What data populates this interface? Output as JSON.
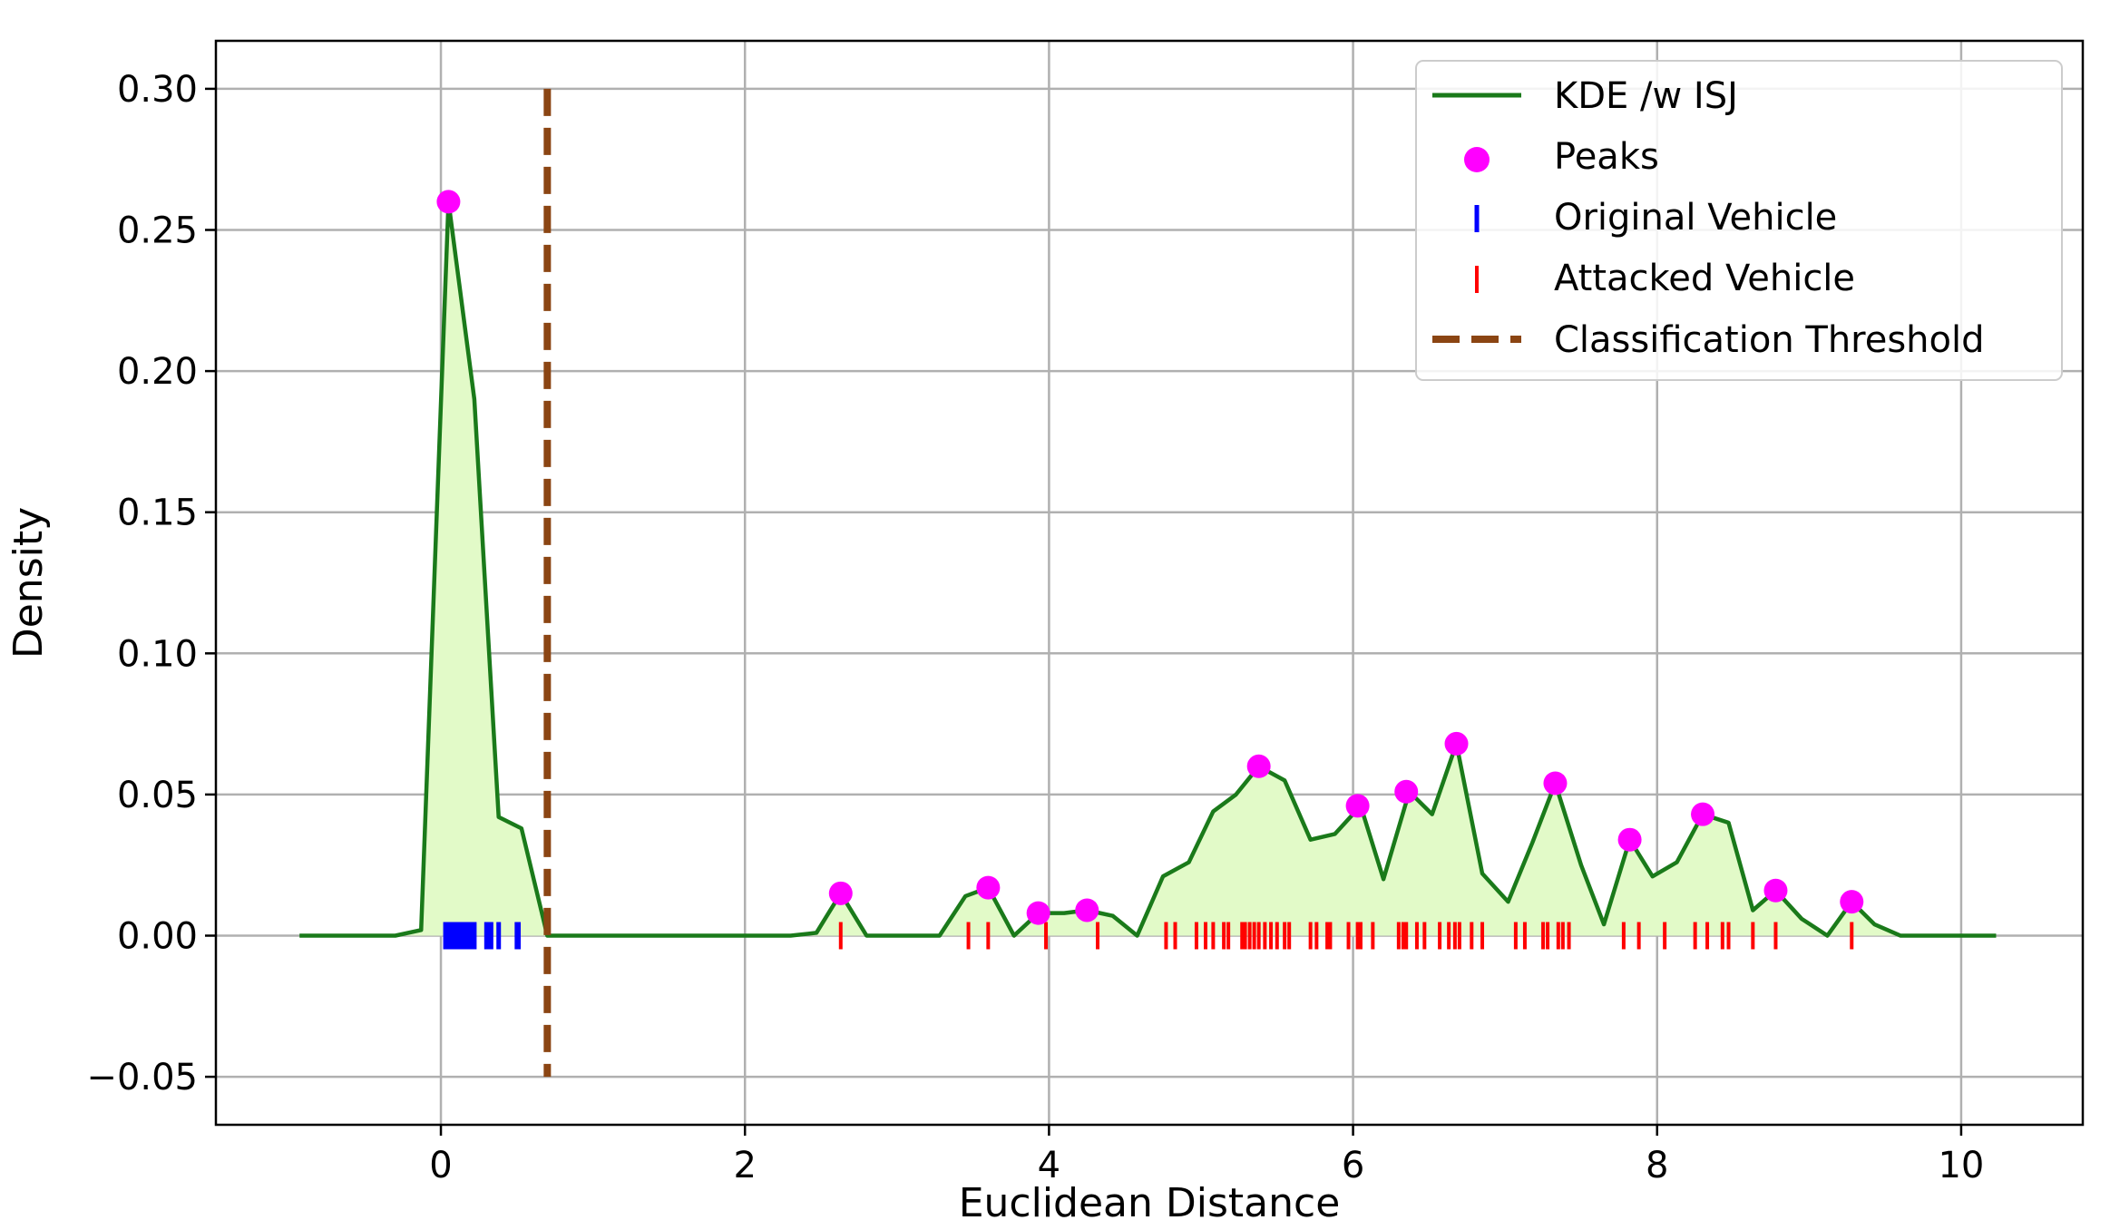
{
  "chart_data": {
    "type": "line",
    "title": "",
    "xlabel": "Euclidean Distance",
    "ylabel": "Density",
    "xlim": [
      -1.48,
      10.8
    ],
    "ylim": [
      -0.067,
      0.317
    ],
    "xticks": [
      0,
      2,
      4,
      6,
      8,
      10
    ],
    "xtick_labels": [
      "0",
      "2",
      "4",
      "6",
      "8",
      "10"
    ],
    "yticks": [
      -0.05,
      0.0,
      0.05,
      0.1,
      0.15,
      0.2,
      0.25,
      0.3
    ],
    "ytick_labels": [
      "−0.05",
      "0.00",
      "0.05",
      "0.10",
      "0.15",
      "0.20",
      "0.25",
      "0.30"
    ],
    "grid": true,
    "legend_position": "top-right",
    "colors": {
      "kde": "#1a7a1a",
      "fill": "#e2fac8",
      "peaks": "#ff00ff",
      "original": "#0000ff",
      "attacked": "#ff0000",
      "threshold": "#8b4513",
      "grid": "#b0b0b0"
    },
    "series": [
      {
        "name": "KDE /w ISJ",
        "x": [
          -0.93,
          -0.3,
          -0.13,
          0.05,
          0.22,
          0.38,
          0.53,
          0.7,
          2.3,
          2.47,
          2.63,
          2.8,
          3.28,
          3.45,
          3.6,
          3.77,
          3.93,
          4.1,
          4.25,
          4.42,
          4.58,
          4.75,
          4.92,
          5.08,
          5.23,
          5.38,
          5.55,
          5.72,
          5.88,
          6.05,
          6.2,
          6.37,
          6.52,
          6.68,
          6.85,
          7.02,
          7.18,
          7.33,
          7.5,
          7.65,
          7.82,
          7.97,
          8.13,
          8.3,
          8.47,
          8.63,
          8.78,
          8.95,
          9.12,
          9.28,
          9.43,
          9.6,
          10.23
        ],
        "y": [
          0.0,
          0.0,
          0.002,
          0.26,
          0.19,
          0.042,
          0.038,
          0.0,
          0.0,
          0.001,
          0.015,
          0.0,
          0.0,
          0.014,
          0.017,
          0.0,
          0.008,
          0.008,
          0.009,
          0.007,
          0.0,
          0.021,
          0.026,
          0.044,
          0.05,
          0.06,
          0.055,
          0.034,
          0.036,
          0.046,
          0.02,
          0.051,
          0.043,
          0.068,
          0.022,
          0.012,
          0.033,
          0.054,
          0.025,
          0.004,
          0.034,
          0.021,
          0.026,
          0.043,
          0.04,
          0.009,
          0.016,
          0.006,
          0.0,
          0.012,
          0.004,
          0.0,
          0.0
        ]
      }
    ],
    "peaks": {
      "name": "Peaks",
      "x": [
        0.05,
        2.63,
        3.6,
        3.93,
        4.25,
        5.38,
        6.03,
        6.35,
        6.68,
        7.33,
        7.82,
        8.3,
        8.78,
        9.28
      ],
      "y": [
        0.26,
        0.015,
        0.017,
        0.008,
        0.009,
        0.06,
        0.046,
        0.051,
        0.068,
        0.054,
        0.034,
        0.043,
        0.016,
        0.012
      ]
    },
    "original_vehicle": {
      "name": "Original Vehicle",
      "x": [
        0.03,
        0.05,
        0.07,
        0.08,
        0.1,
        0.11,
        0.13,
        0.14,
        0.16,
        0.18,
        0.19,
        0.21,
        0.22,
        0.3,
        0.31,
        0.33,
        0.38,
        0.5,
        0.51
      ]
    },
    "attacked_vehicle": {
      "name": "Attacked Vehicle",
      "x": [
        2.63,
        3.47,
        3.6,
        3.98,
        4.32,
        4.77,
        4.83,
        4.97,
        5.03,
        5.08,
        5.15,
        5.18,
        5.27,
        5.29,
        5.32,
        5.35,
        5.38,
        5.42,
        5.46,
        5.5,
        5.55,
        5.58,
        5.72,
        5.76,
        5.83,
        5.85,
        5.97,
        6.03,
        6.05,
        6.13,
        6.3,
        6.33,
        6.35,
        6.42,
        6.47,
        6.57,
        6.63,
        6.67,
        6.7,
        6.78,
        6.85,
        7.07,
        7.13,
        7.25,
        7.28,
        7.35,
        7.38,
        7.42,
        7.78,
        7.88,
        8.05,
        8.25,
        8.33,
        8.43,
        8.47,
        8.63,
        8.78,
        9.28
      ]
    },
    "threshold": {
      "name": "Classification Threshold",
      "x": 0.7,
      "y_range": [
        -0.05,
        0.3
      ]
    },
    "legend": [
      "KDE /w ISJ",
      "Peaks",
      "Original Vehicle",
      "Attacked Vehicle",
      "Classification Threshold"
    ]
  }
}
